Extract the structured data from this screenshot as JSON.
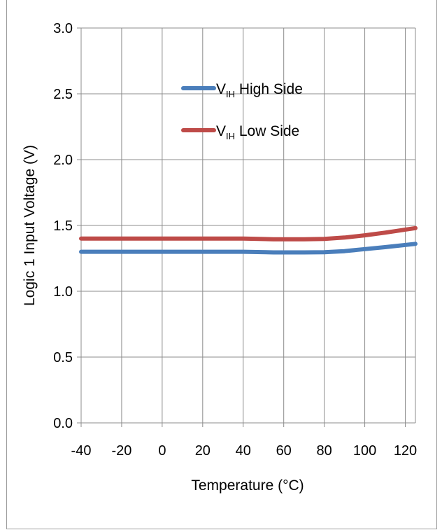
{
  "chart_data": {
    "type": "line",
    "title": "",
    "xlabel": "Temperature (°C)",
    "ylabel": "Logic 1 Input Voltage (V)",
    "xlim": [
      -40,
      125
    ],
    "ylim": [
      0,
      3.0
    ],
    "x_ticks": [
      "-40",
      "-20",
      "0",
      "20",
      "40",
      "60",
      "80",
      "100",
      "120"
    ],
    "y_ticks": [
      "0.0",
      "0.5",
      "1.0",
      "1.5",
      "2.0",
      "2.5",
      "3.0"
    ],
    "grid": true,
    "legend_position": "top-center",
    "series": [
      {
        "name": "VIH High Side",
        "name_main": "V",
        "name_sub": "IH",
        "name_rest": " High Side",
        "color": "#4a7ebb",
        "x": [
          -40,
          -20,
          0,
          20,
          40,
          55,
          70,
          80,
          90,
          100,
          110,
          125
        ],
        "y": [
          1.3,
          1.3,
          1.3,
          1.3,
          1.3,
          1.295,
          1.295,
          1.297,
          1.305,
          1.32,
          1.335,
          1.36
        ]
      },
      {
        "name": "VIH Low Side",
        "name_main": "V",
        "name_sub": "IH",
        "name_rest": " Low Side",
        "color": "#be4b48",
        "x": [
          -40,
          -20,
          0,
          20,
          40,
          55,
          70,
          80,
          90,
          100,
          110,
          125
        ],
        "y": [
          1.4,
          1.4,
          1.4,
          1.4,
          1.4,
          1.395,
          1.395,
          1.398,
          1.408,
          1.425,
          1.445,
          1.48
        ]
      }
    ]
  }
}
